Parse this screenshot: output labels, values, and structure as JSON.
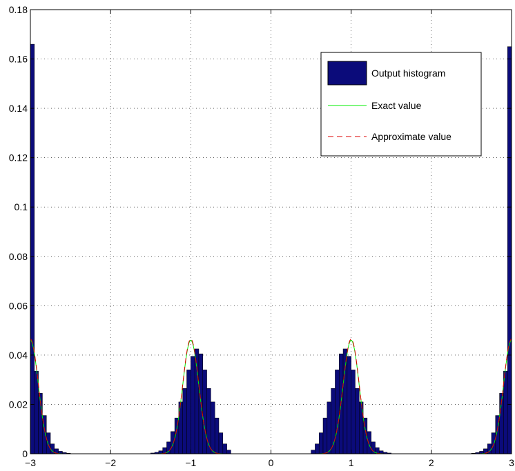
{
  "chart_data": {
    "type": "bar",
    "title": "",
    "xlabel": "",
    "ylabel": "",
    "xlim": [
      -3,
      3
    ],
    "ylim": [
      0,
      0.18
    ],
    "grid": true,
    "legend_position": "top-right",
    "x_ticks": [
      -3,
      -2,
      -1,
      0,
      1,
      2,
      3
    ],
    "x_tick_labels": [
      "−3",
      "−2",
      "−1",
      "0",
      "1",
      "2",
      "3"
    ],
    "y_ticks": [
      0,
      0.02,
      0.04,
      0.06,
      0.08,
      0.1,
      0.12,
      0.14,
      0.16,
      0.18
    ],
    "y_tick_labels": [
      "0",
      "0.02",
      "0.04",
      "0.06",
      "0.08",
      "0.1",
      "0.12",
      "0.14",
      "0.16",
      "0.18"
    ],
    "bin_width": 0.05,
    "series": [
      {
        "name": "Output histogram",
        "kind": "histogram",
        "color": "#0b0b7a",
        "bin_centers": [
          -2.975,
          -2.925,
          -2.875,
          -2.825,
          -2.775,
          -2.725,
          -2.675,
          -2.625,
          -2.575,
          -2.525,
          -1.475,
          -1.425,
          -1.375,
          -1.325,
          -1.275,
          -1.225,
          -1.175,
          -1.125,
          -1.075,
          -1.025,
          -0.975,
          -0.925,
          -0.875,
          -0.825,
          -0.775,
          -0.725,
          -0.675,
          -0.625,
          -0.575,
          -0.525,
          0.525,
          0.575,
          0.625,
          0.675,
          0.725,
          0.775,
          0.825,
          0.875,
          0.925,
          0.975,
          1.025,
          1.075,
          1.125,
          1.175,
          1.225,
          1.275,
          1.325,
          1.375,
          1.425,
          1.475,
          2.525,
          2.575,
          2.625,
          2.675,
          2.725,
          2.775,
          2.825,
          2.875,
          2.925,
          2.975
        ],
        "values": [
          0.166,
          0.0335,
          0.0245,
          0.0155,
          0.0085,
          0.004,
          0.002,
          0.001,
          0.0005,
          0.0002,
          0.0003,
          0.0006,
          0.0012,
          0.0025,
          0.0048,
          0.009,
          0.0145,
          0.021,
          0.0265,
          0.034,
          0.0395,
          0.0425,
          0.0405,
          0.034,
          0.0265,
          0.021,
          0.0145,
          0.0085,
          0.004,
          0.0015,
          0.0015,
          0.004,
          0.0085,
          0.0145,
          0.021,
          0.0265,
          0.034,
          0.0405,
          0.0425,
          0.0395,
          0.034,
          0.0265,
          0.021,
          0.0145,
          0.009,
          0.0048,
          0.0025,
          0.0012,
          0.0006,
          0.0003,
          0.0002,
          0.0005,
          0.001,
          0.002,
          0.004,
          0.0085,
          0.0155,
          0.0245,
          0.0335,
          0.165
        ]
      },
      {
        "name": "Exact value",
        "kind": "line",
        "color": "#00ee00",
        "peaks": [
          -3,
          -1,
          1,
          3
        ],
        "peak_value": 0.046,
        "sigma": 0.1
      },
      {
        "name": "Approximate value",
        "kind": "dashed-line",
        "color": "#dd0000",
        "peaks": [
          -3,
          -1,
          1,
          3
        ],
        "peak_value": 0.0465,
        "sigma": 0.1
      }
    ]
  }
}
